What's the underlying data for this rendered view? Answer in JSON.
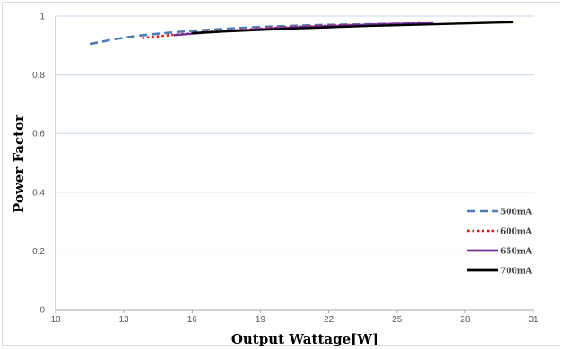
{
  "chart_data": {
    "type": "line",
    "title": "",
    "xlabel": "Output Wattage[W]",
    "ylabel": "Power Factor",
    "xlim": [
      10,
      31
    ],
    "ylim": [
      0,
      1
    ],
    "xticks": [
      10,
      13,
      16,
      19,
      22,
      25,
      28,
      31
    ],
    "yticks": [
      0,
      0.2,
      0.4,
      0.6,
      0.8,
      1
    ],
    "ytick_labels": [
      "0",
      "0.2",
      "0.4",
      "0.6",
      "0.8",
      "1"
    ],
    "grid": "horizontal",
    "legend_position": "bottom-right",
    "series": [
      {
        "name": "500mA",
        "color": "#4a7ebb",
        "dash": "dashed",
        "points": [
          [
            11.5,
            0.905
          ],
          [
            12.5,
            0.92
          ],
          [
            13.5,
            0.932
          ],
          [
            14.5,
            0.94
          ],
          [
            16,
            0.95
          ],
          [
            17.5,
            0.957
          ],
          [
            19,
            0.963
          ],
          [
            20.5,
            0.967
          ],
          [
            22,
            0.97
          ],
          [
            23.5,
            0.972
          ],
          [
            25,
            0.974
          ],
          [
            25.6,
            0.975
          ]
        ]
      },
      {
        "name": "600mA",
        "color": "#ff0000",
        "dash": "dotted",
        "points": [
          [
            13.8,
            0.925
          ],
          [
            15,
            0.935
          ],
          [
            16.5,
            0.945
          ],
          [
            18,
            0.953
          ],
          [
            19.5,
            0.96
          ],
          [
            21,
            0.965
          ],
          [
            22.5,
            0.969
          ],
          [
            24,
            0.972
          ],
          [
            25.5,
            0.975
          ],
          [
            26,
            0.976
          ]
        ]
      },
      {
        "name": "650mA",
        "color": "#7030a0",
        "dash": "solid",
        "points": [
          [
            15.2,
            0.935
          ],
          [
            16.5,
            0.943
          ],
          [
            18,
            0.951
          ],
          [
            19.5,
            0.958
          ],
          [
            21,
            0.963
          ],
          [
            22.5,
            0.967
          ],
          [
            24,
            0.971
          ],
          [
            25.5,
            0.974
          ],
          [
            26.6,
            0.976
          ]
        ]
      },
      {
        "name": "700mA",
        "color": "#000000",
        "dash": "solid",
        "points": [
          [
            16,
            0.942
          ],
          [
            17.5,
            0.948
          ],
          [
            19,
            0.953
          ],
          [
            20.5,
            0.958
          ],
          [
            22,
            0.962
          ],
          [
            23.5,
            0.966
          ],
          [
            25,
            0.969
          ],
          [
            26.5,
            0.972
          ],
          [
            28,
            0.975
          ],
          [
            29.5,
            0.978
          ],
          [
            30.1,
            0.979
          ]
        ]
      }
    ]
  }
}
